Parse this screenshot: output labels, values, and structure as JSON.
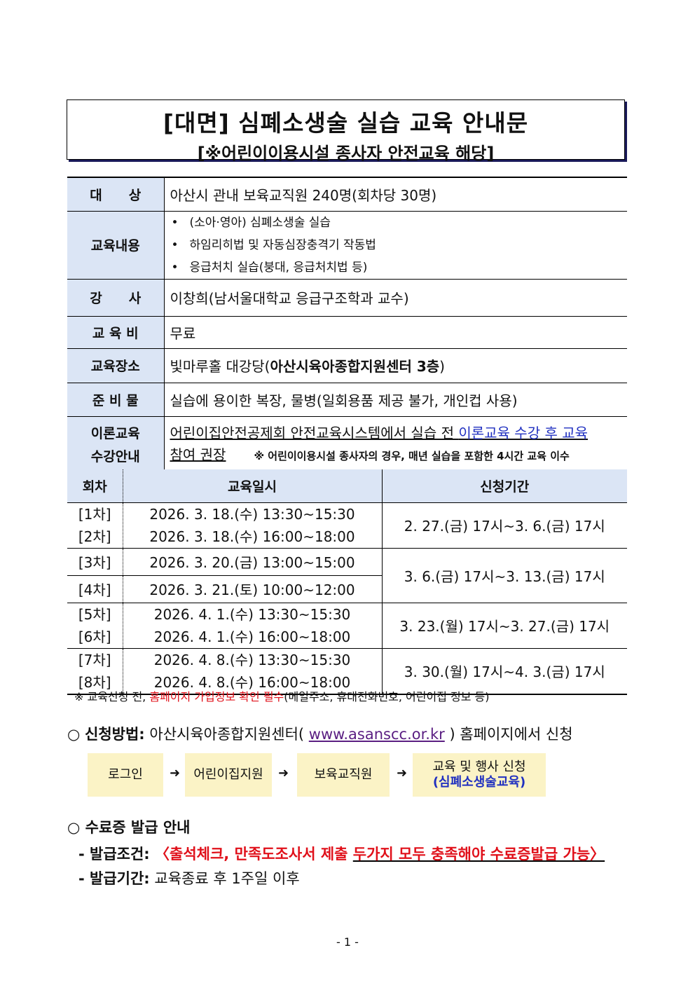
{
  "title": {
    "main": "[대면] 심폐소생술 실습 교육 안내문",
    "sub": "[※어린이이용시설 종사자 안전교육 해당]"
  },
  "info": {
    "target": {
      "label": "대　　상",
      "value": "아산시 관내 보육교직원 240명(회차당 30명)"
    },
    "content": {
      "label": "교육내용",
      "items": [
        "(소아·영아) 심폐소생술 실습",
        "하임리히법 및 자동심장충격기 작동법",
        "응급처치 실습(붕대, 응급처치법 등)"
      ]
    },
    "instructor": {
      "label": "강　　사",
      "value": "이창희(남서울대학교 응급구조학과 교수)"
    },
    "fee": {
      "label": "교 육 비",
      "value": "무료"
    },
    "place": {
      "label": "교육장소",
      "value": "빛마루홀 대강당(",
      "value_bold": "아산시육아종합지원센터 3층",
      ")": ")"
    },
    "supplies": {
      "label": "준 비 물",
      "value": "실습에 용이한 복장, 물병(일회용품 제공 불가, 개인컵 사용)"
    },
    "theory": {
      "label1": "이론교육",
      "label2": "수강안내",
      "link1": "어린이집안전공제회 안전교육시스템에서 실습 전 ",
      "link2": "이론교육 수강 후 교육",
      "link3": "참여 권장",
      "note": "※ 어린이이용시설 종사자의 경우, 매년 실습을 포함한 4시간 교육 이수"
    }
  },
  "schedule": {
    "headers": [
      "회차",
      "교육일시",
      "신청기간"
    ],
    "groups": [
      {
        "sessions": [
          {
            "no": "[1차]",
            "time": "2026. 3. 18.(수) 13:30~15:30"
          },
          {
            "no": "[2차]",
            "time": "2026. 3. 18.(수) 16:00~18:00"
          }
        ],
        "period": "2. 27.(금) 17시~3. 6.(금) 17시"
      },
      {
        "sessions": [
          {
            "no": "[3차]",
            "time": "2026. 3. 20.(금) 13:00~15:00"
          },
          {
            "no": "[4차]",
            "time": "2026. 3. 21.(토) 10:00~12:00"
          }
        ],
        "period": "3. 6.(금) 17시~3. 13.(금) 17시"
      },
      {
        "sessions": [
          {
            "no": "[5차]",
            "time": "2026. 4. 1.(수) 13:30~15:30"
          },
          {
            "no": "[6차]",
            "time": "2026. 4. 1.(수) 16:00~18:00"
          }
        ],
        "period": "3. 23.(월) 17시~3. 27.(금) 17시"
      },
      {
        "sessions": [
          {
            "no": "[7차]",
            "time": "2026. 4. 8.(수) 13:30~15:30"
          },
          {
            "no": "[8차]",
            "time": "2026. 4. 8.(수) 16:00~18:00"
          }
        ],
        "period": "3. 30.(월) 17시~4. 3.(금) 17시"
      }
    ],
    "footnote": {
      "pre": "※ 교육신청 전, ",
      "red": "홈페이지 가입정보 확인 필수",
      "post": "(메일주소, 휴대전화번호, 어린이집 정보 등)"
    }
  },
  "apply": {
    "bullet": "○",
    "label": "신청방법:",
    "text1": " 아산시육아종합지원센터( ",
    "url": "www.asanscc.or.kr",
    "text2": " ) 홈페이지에서 신청",
    "steps": [
      "로그인",
      "어린이집지원",
      "보육교직원",
      "교육 및 행사 신청"
    ],
    "step4_sub": "(심폐소생술교육)",
    "arrow": "➜"
  },
  "cert": {
    "title": "○ 수료증 발급 안내",
    "cond_label": "- 발급조건:",
    "cond_red": " 〈출석체크, 만족도조사서 제출 ",
    "cond_red_ul": "두가지 모두 충족해야 수료증발급 가능〉",
    "period_label": "- 발급기간:",
    "period_value": " 교육종료 후 1주일 이후"
  },
  "page": "- 1 -"
}
